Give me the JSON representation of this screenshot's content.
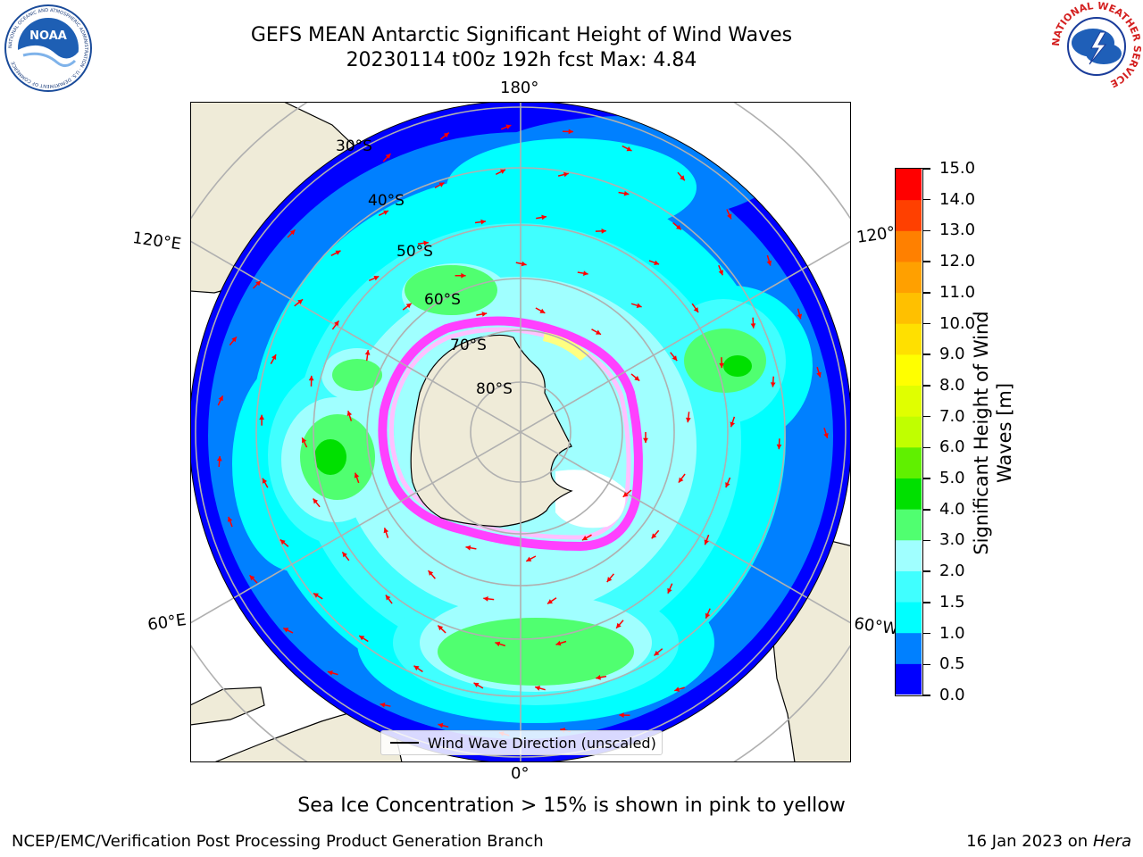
{
  "header": {
    "title_line1": "GEFS MEAN Antarctic Significant Height of Wind Waves",
    "title_line2": "20230114 t00z 192h fcst   Max: 4.84"
  },
  "logos": {
    "left": {
      "name": "noaa-logo",
      "text": "NOAA",
      "ring_text": "NATIONAL OCEANIC AND ATMOSPHERIC ADMINISTRATION · U.S. DEPARTMENT OF COMMERCE"
    },
    "right": {
      "name": "nws-logo",
      "ring_text": "NATIONAL WEATHER SERVICE"
    }
  },
  "map": {
    "projection": "south polar stereographic",
    "longitude_labels": {
      "top": "180°",
      "bottom": "0°",
      "upper_left": "120°E",
      "upper_right": "120°W",
      "lower_left": "60°E",
      "lower_right": "60°W"
    },
    "latitude_labels": [
      "30°S",
      "40°S",
      "50°S",
      "60°S",
      "70°S",
      "80°S"
    ],
    "legend_label": "Wind Wave Direction (unscaled)",
    "ocean_color": "#0000ff",
    "land_color": "#efebd8",
    "arrow_color": "#ff0000",
    "sea_ice_colors": [
      "#ff40ff",
      "#ffc0ff",
      "#ffff80",
      "#ffffff"
    ]
  },
  "colorbar": {
    "label": "Significant Height of Wind\nWaves [m]",
    "ticks": [
      "0.0",
      "0.5",
      "1.0",
      "1.5",
      "2.0",
      "3.0",
      "4.0",
      "5.0",
      "6.0",
      "7.0",
      "8.0",
      "9.0",
      "10.0",
      "11.0",
      "12.0",
      "13.0",
      "14.0",
      "15.0"
    ],
    "colors": [
      "#0000ff",
      "#0080ff",
      "#00ffff",
      "#40ffff",
      "#a0ffff",
      "#50ff70",
      "#00e000",
      "#60f000",
      "#c0ff00",
      "#e0ff00",
      "#ffff00",
      "#ffe000",
      "#ffc000",
      "#ffa000",
      "#ff8000",
      "#ff4000",
      "#ff0000"
    ]
  },
  "caption": "Sea Ice Concentration > 15% is shown in pink to yellow",
  "footer": {
    "left": "NCEP/EMC/Verification Post Processing Product Generation Branch",
    "right_prefix": "16 Jan 2023 on ",
    "right_italic": "Hera"
  }
}
